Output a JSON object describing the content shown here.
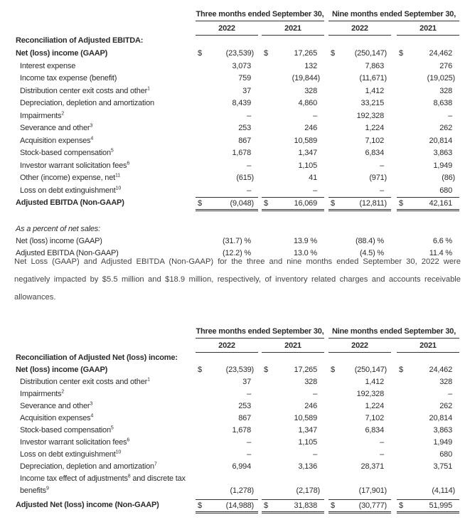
{
  "table1": {
    "group_headers": [
      "Three months ended September 30,",
      "Nine months ended September 30,"
    ],
    "years": [
      "2022",
      "2021",
      "2022",
      "2021"
    ],
    "section_title": "Reconciliation of Adjusted EBITDA:",
    "rows": [
      {
        "label": "Net (loss) income (GAAP)",
        "sup": "",
        "bold": true,
        "dollar": true,
        "values": [
          "(23,539)",
          "17,265",
          "(250,147)",
          "24,462"
        ]
      },
      {
        "label": "Interest expense",
        "sup": "",
        "values": [
          "3,073",
          "132",
          "7,863",
          "276"
        ]
      },
      {
        "label": "Income tax expense (benefit)",
        "sup": "",
        "values": [
          "759",
          "(19,844)",
          "(11,671)",
          "(19,025)"
        ]
      },
      {
        "label": "Distribution center exit costs and other",
        "sup": "1",
        "values": [
          "37",
          "328",
          "1,412",
          "328"
        ]
      },
      {
        "label": "Depreciation, depletion and amortization",
        "sup": "",
        "values": [
          "8,439",
          "4,860",
          "33,215",
          "8,638"
        ]
      },
      {
        "label": "Impairments",
        "sup": "2",
        "values": [
          "–",
          "–",
          "192,328",
          "–"
        ]
      },
      {
        "label": "Severance and other",
        "sup": "3",
        "values": [
          "253",
          "246",
          "1,224",
          "262"
        ]
      },
      {
        "label": "Acquisition expenses",
        "sup": "4",
        "values": [
          "867",
          "10,589",
          "7,102",
          "20,814"
        ]
      },
      {
        "label": "Stock-based compensation",
        "sup": "5",
        "values": [
          "1,678",
          "1,347",
          "6,834",
          "3,863"
        ]
      },
      {
        "label": "Investor warrant solicitation fees",
        "sup": "6",
        "values": [
          "–",
          "1,105",
          "–",
          "1,949"
        ]
      },
      {
        "label": "Other (income) expense, net",
        "sup": "11",
        "values": [
          "(615)",
          "41",
          "(971)",
          "(86)"
        ]
      },
      {
        "label": "Loss on debt extinguishment",
        "sup": "10",
        "values": [
          "–",
          "–",
          "–",
          "680"
        ]
      },
      {
        "label": "Adjusted EBITDA (Non-GAAP)",
        "sup": "",
        "bold": true,
        "dollar": true,
        "total": true,
        "values": [
          "(9,048)",
          "16,069",
          "(12,811)",
          "42,161"
        ]
      }
    ],
    "percent_title": "As a percent of net sales:",
    "percent_rows": [
      {
        "label": "Net (loss) income (GAAP)",
        "values": [
          "(31.7) %",
          "13.9 %",
          "(88.4) %",
          "6.6 %"
        ]
      },
      {
        "label": "Adjusted EBITDA (Non-GAAP)",
        "values": [
          "(12.2) %",
          "13.0 %",
          "(4.5) %",
          "11.4 %"
        ]
      }
    ]
  },
  "paragraph": "Net Loss (GAAP) and Adjusted EBITDA (Non-GAAP) for the three and nine months ended September 30, 2022 were negatively impacted by $5.5 million and $18.9 million, respectively, of inventory related charges and accounts receivable allowances.",
  "table2": {
    "group_headers": [
      "Three months ended September 30,",
      "Nine months ended September 30,"
    ],
    "years": [
      "2022",
      "2021",
      "2022",
      "2021"
    ],
    "section_title": "Reconciliation of Adjusted Net (loss) income:",
    "rows": [
      {
        "label": "Net (loss) income (GAAP)",
        "sup": "",
        "bold": true,
        "dollar": true,
        "values": [
          "(23,539)",
          "17,265",
          "(250,147)",
          "24,462"
        ]
      },
      {
        "label": "Distribution center exit costs and other",
        "sup": "1",
        "values": [
          "37",
          "328",
          "1,412",
          "328"
        ]
      },
      {
        "label": "Impairments",
        "sup": "2",
        "values": [
          "–",
          "–",
          "192,328",
          "–"
        ]
      },
      {
        "label": "Severance and other",
        "sup": "3",
        "values": [
          "253",
          "246",
          "1,224",
          "262"
        ]
      },
      {
        "label": "Acquisition expenses",
        "sup": "4",
        "values": [
          "867",
          "10,589",
          "7,102",
          "20,814"
        ]
      },
      {
        "label": "Stock-based compensation",
        "sup": "5",
        "values": [
          "1,678",
          "1,347",
          "6,834",
          "3,863"
        ]
      },
      {
        "label": "Investor warrant solicitation fees",
        "sup": "6",
        "values": [
          "–",
          "1,105",
          "–",
          "1,949"
        ]
      },
      {
        "label": "Loss on debt extinguishment",
        "sup": "10",
        "values": [
          "–",
          "–",
          "–",
          "680"
        ]
      },
      {
        "label": "Depreciation, depletion and amortization",
        "sup": "7",
        "values": [
          "6,994",
          "3,136",
          "28,371",
          "3,751"
        ]
      },
      {
        "label": "Income tax effect of adjustments",
        "sup": "8",
        "label2": " and discrete tax",
        "line2": "benefits",
        "sup2": "9",
        "values": [
          "(1,278)",
          "(2,178)",
          "(17,901)",
          "(4,114)"
        ]
      },
      {
        "label": "Adjusted Net (loss) income (Non-GAAP)",
        "sup": "",
        "bold": true,
        "dollar": true,
        "total": true,
        "values": [
          "(14,988)",
          "31,838",
          "(30,777)",
          "51,995"
        ]
      }
    ]
  },
  "currency_symbol": "$"
}
